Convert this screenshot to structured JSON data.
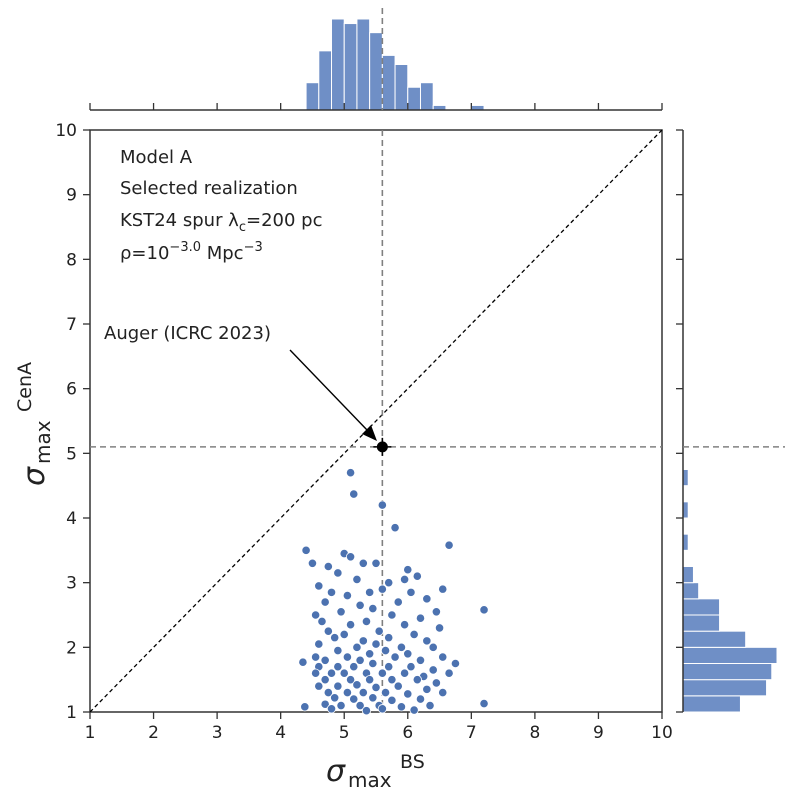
{
  "chart_data": {
    "type": "scatter",
    "title": "",
    "xlabel": "σ_max^BS",
    "ylabel": "σ_max^CenA",
    "xlabel_main": "σ",
    "xlabel_sub": "max",
    "xlabel_sup": "BS",
    "ylabel_main": "σ",
    "ylabel_sub": "max",
    "ylabel_sup": "CenA",
    "xlim": [
      1,
      10
    ],
    "ylim": [
      1,
      10
    ],
    "xticks": [
      "1",
      "2",
      "3",
      "4",
      "5",
      "6",
      "7",
      "8",
      "9",
      "10"
    ],
    "yticks": [
      "1",
      "2",
      "3",
      "4",
      "5",
      "6",
      "7",
      "8",
      "9",
      "10"
    ],
    "colors": {
      "points": "#4c72b0",
      "hist": "#6f8fc6",
      "ref_line": "#808080",
      "diag": "#000000",
      "auger": "#000000"
    },
    "annotations": {
      "line1": "Model A",
      "line2": "Selected realization",
      "line3": "KST24 spur λ_c=200 pc",
      "line4": "ρ=10^-3.0 Mpc^-3",
      "auger_label": "Auger (ICRC 2023)"
    },
    "auger_point": {
      "x": 5.6,
      "y": 5.1
    },
    "diagonal": true,
    "points": [
      [
        5.1,
        4.7
      ],
      [
        5.15,
        4.37
      ],
      [
        5.6,
        4.2
      ],
      [
        5.8,
        3.85
      ],
      [
        6.65,
        3.58
      ],
      [
        4.4,
        3.5
      ],
      [
        5.0,
        3.45
      ],
      [
        5.1,
        3.4
      ],
      [
        4.5,
        3.3
      ],
      [
        4.75,
        3.25
      ],
      [
        5.3,
        3.3
      ],
      [
        5.5,
        3.3
      ],
      [
        6.0,
        3.2
      ],
      [
        6.15,
        3.1
      ],
      [
        4.9,
        3.15
      ],
      [
        5.2,
        3.05
      ],
      [
        4.6,
        2.95
      ],
      [
        5.7,
        3.0
      ],
      [
        5.95,
        3.05
      ],
      [
        6.55,
        2.9
      ],
      [
        7.2,
        2.58
      ],
      [
        4.8,
        2.85
      ],
      [
        5.05,
        2.8
      ],
      [
        5.4,
        2.85
      ],
      [
        5.6,
        2.9
      ],
      [
        6.05,
        2.85
      ],
      [
        6.3,
        2.75
      ],
      [
        4.7,
        2.7
      ],
      [
        5.25,
        2.65
      ],
      [
        5.85,
        2.7
      ],
      [
        6.45,
        2.55
      ],
      [
        4.55,
        2.5
      ],
      [
        4.95,
        2.55
      ],
      [
        5.45,
        2.6
      ],
      [
        5.75,
        2.5
      ],
      [
        6.2,
        2.45
      ],
      [
        4.65,
        2.4
      ],
      [
        5.1,
        2.35
      ],
      [
        5.35,
        2.4
      ],
      [
        5.95,
        2.35
      ],
      [
        6.5,
        2.3
      ],
      [
        4.75,
        2.25
      ],
      [
        5.0,
        2.2
      ],
      [
        5.55,
        2.25
      ],
      [
        6.1,
        2.2
      ],
      [
        4.85,
        2.15
      ],
      [
        5.3,
        2.1
      ],
      [
        5.7,
        2.15
      ],
      [
        6.3,
        2.1
      ],
      [
        4.6,
        2.05
      ],
      [
        5.2,
        2.0
      ],
      [
        5.5,
        2.05
      ],
      [
        5.9,
        2.0
      ],
      [
        6.4,
        2.0
      ],
      [
        4.9,
        1.95
      ],
      [
        5.4,
        1.9
      ],
      [
        5.65,
        1.95
      ],
      [
        6.0,
        1.9
      ],
      [
        6.55,
        1.85
      ],
      [
        4.55,
        1.85
      ],
      [
        4.7,
        1.8
      ],
      [
        5.05,
        1.85
      ],
      [
        5.25,
        1.8
      ],
      [
        5.8,
        1.85
      ],
      [
        6.2,
        1.8
      ],
      [
        6.75,
        1.75
      ],
      [
        4.35,
        1.77
      ],
      [
        4.6,
        1.7
      ],
      [
        4.9,
        1.7
      ],
      [
        5.15,
        1.7
      ],
      [
        5.45,
        1.75
      ],
      [
        5.7,
        1.7
      ],
      [
        6.05,
        1.7
      ],
      [
        6.4,
        1.65
      ],
      [
        4.55,
        1.6
      ],
      [
        4.8,
        1.6
      ],
      [
        5.0,
        1.6
      ],
      [
        5.35,
        1.6
      ],
      [
        5.6,
        1.6
      ],
      [
        5.95,
        1.6
      ],
      [
        6.25,
        1.55
      ],
      [
        6.65,
        1.6
      ],
      [
        4.7,
        1.5
      ],
      [
        5.1,
        1.5
      ],
      [
        5.4,
        1.5
      ],
      [
        5.75,
        1.5
      ],
      [
        6.15,
        1.5
      ],
      [
        6.45,
        1.45
      ],
      [
        4.6,
        1.4
      ],
      [
        4.9,
        1.4
      ],
      [
        5.2,
        1.42
      ],
      [
        5.5,
        1.38
      ],
      [
        5.85,
        1.4
      ],
      [
        6.3,
        1.35
      ],
      [
        4.75,
        1.3
      ],
      [
        5.05,
        1.3
      ],
      [
        5.3,
        1.3
      ],
      [
        5.65,
        1.3
      ],
      [
        6.0,
        1.28
      ],
      [
        6.55,
        1.3
      ],
      [
        4.85,
        1.22
      ],
      [
        5.15,
        1.2
      ],
      [
        5.45,
        1.22
      ],
      [
        5.75,
        1.18
      ],
      [
        6.2,
        1.2
      ],
      [
        4.7,
        1.12
      ],
      [
        4.95,
        1.1
      ],
      [
        5.25,
        1.1
      ],
      [
        5.55,
        1.1
      ],
      [
        5.9,
        1.08
      ],
      [
        6.35,
        1.1
      ],
      [
        7.2,
        1.13
      ],
      [
        4.38,
        1.08
      ],
      [
        5.6,
        1.05
      ],
      [
        4.8,
        1.05
      ],
      [
        5.35,
        1.02
      ],
      [
        6.1,
        1.03
      ]
    ],
    "top_histogram": {
      "bin_edges": [
        4.4,
        4.6,
        4.8,
        5.0,
        5.2,
        5.4,
        5.6,
        5.8,
        6.0,
        6.2,
        6.4,
        6.6,
        6.8,
        7.0,
        7.2
      ],
      "counts": [
        6,
        13,
        20,
        19,
        20,
        17,
        12,
        10,
        5,
        6,
        1,
        0,
        0,
        1
      ]
    },
    "right_histogram": {
      "bin_edges": [
        1.0,
        1.25,
        1.5,
        1.75,
        2.0,
        2.25,
        2.5,
        2.75,
        3.0,
        3.25,
        3.5,
        3.75,
        4.0,
        4.25,
        4.5,
        4.75
      ],
      "counts": [
        11,
        16,
        17,
        18,
        12,
        7,
        7,
        3,
        2,
        0,
        1,
        0,
        1,
        0,
        1
      ]
    }
  }
}
